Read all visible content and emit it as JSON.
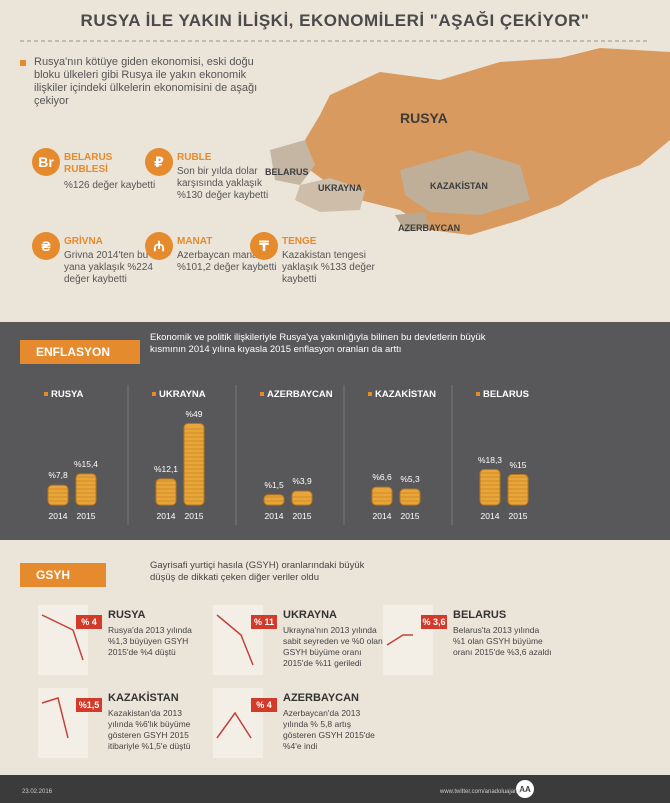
{
  "header": {
    "title": "RUSYA İLE YAKIN İLİŞKİ, EKONOMİLERİ \"AŞAĞI ÇEKİYOR\""
  },
  "intro": "Rusya'nın kötüye giden ekonomisi, eski doğu bloku ülkeleri gibi Rusya ile yakın ekonomik ilişkiler içindeki ülkelerin ekonomisini de aşağı çekiyor",
  "map": {
    "labels": [
      "RUSYA",
      "BELARUS",
      "UKRAYNA",
      "KAZAKİSTAN",
      "AZERBAYCAN"
    ]
  },
  "currencies": [
    {
      "symbol": "Br",
      "name": "BELARUS RUBLESİ",
      "text": "%126 değer kaybetti"
    },
    {
      "symbol": "₽",
      "name": "RUBLE",
      "text": "Son bir yılda dolar karşısında yaklaşık %130 değer kaybetti"
    },
    {
      "symbol": "₴",
      "name": "GRİVNA",
      "text": "Grivna 2014'ten bu yana yaklaşık %224 değer kaybetti"
    },
    {
      "symbol": "₼",
      "name": "MANAT",
      "text": "Azerbaycan manatı %101,2 değer kaybetti"
    },
    {
      "symbol": "₸",
      "name": "TENGE",
      "text": "Kazakistan tengesi yaklaşık %133 değer kaybetti"
    }
  ],
  "inflation": {
    "title": "ENFLASYON",
    "text": "Ekonomik ve politik ilişkileriyle Rusya'ya yakınlığıyla bilinen bu devletlerin büyük kısmının 2014 yılına kıyasla 2015 enflasyon oranları da arttı",
    "years": [
      "2014",
      "2015"
    ],
    "countries": [
      {
        "name": "RUSYA",
        "values": [
          7.8,
          15.4
        ],
        "value_labels": [
          "%7,8",
          "%15,4"
        ]
      },
      {
        "name": "UKRAYNA",
        "values": [
          12.1,
          49
        ],
        "value_labels": [
          "%12,1",
          "%49"
        ]
      },
      {
        "name": "AZERBAYCAN",
        "values": [
          1.5,
          3.9
        ],
        "value_labels": [
          "%1,5",
          "%3,9"
        ]
      },
      {
        "name": "KAZAKİSTAN",
        "values": [
          6.6,
          5.3
        ],
        "value_labels": [
          "%6,6",
          "%5,3"
        ]
      },
      {
        "name": "BELARUS",
        "values": [
          18.3,
          15
        ],
        "value_labels": [
          "%18,3",
          "%15"
        ]
      }
    ]
  },
  "gdp": {
    "title": "GSYH",
    "text": "Gayrisafi yurtiçi hasıla (GSYH) oranlarındaki büyük düşüş de dikkati çeken diğer veriler oldu",
    "items": [
      {
        "name": "RUSYA",
        "badge": "% 4",
        "text": "Rusya'da 2013 yılında %1,3 büyüyen GSYH 2015'de %4 düştü"
      },
      {
        "name": "UKRAYNA",
        "badge": "% 11",
        "text": "Ukrayna'nın 2013 yılında sabit seyreden ve %0 olan GSYH büyüme oranı 2015'de %11 geriledi"
      },
      {
        "name": "BELARUS",
        "badge": "% 3,6",
        "text": "Belarus'ta 2013 yılında %1 olan GSYH büyüme oranı 2015'de %3,6 azaldı"
      },
      {
        "name": "KAZAKİSTAN",
        "badge": "%1,5",
        "text": "Kazakistan'da 2013 yılında %6'lık büyüme gösteren GSYH 2015 itibariyle %1,5'e düştü"
      },
      {
        "name": "AZERBAYCAN",
        "badge": "% 4",
        "text": "Azerbaycan'da 2013 yılında % 5,8 artış gösteren GSYH 2015'de %4'e indi"
      }
    ]
  },
  "footer": {
    "date": "23.02.2016",
    "source": "www.twitter.com/anadoluajansi"
  }
}
